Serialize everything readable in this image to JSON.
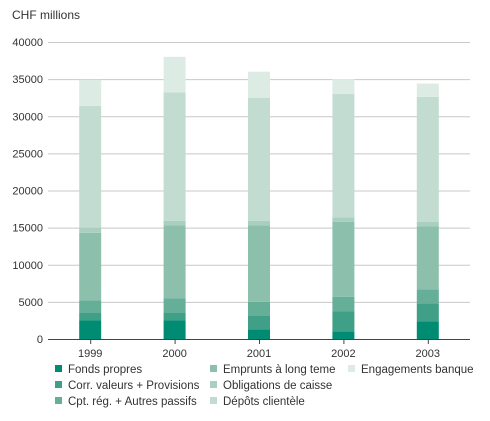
{
  "chart_data": {
    "type": "bar",
    "stacked": true,
    "ylabel": "CHF millions",
    "ylim": [
      0,
      40000
    ],
    "yticks": [
      "0",
      "5000",
      "10000",
      "15000",
      "20000",
      "25000",
      "30000",
      "35000",
      "40000"
    ],
    "grid": true,
    "categories": [
      "1999",
      "2000",
      "2001",
      "2002",
      "2003"
    ],
    "series": [
      {
        "name": "Fonds propres",
        "color": "#008c72",
        "values": [
          2500,
          2500,
          1300,
          1000,
          2400
        ]
      },
      {
        "name": "Corr. valeurs + Provisions",
        "color": "#3fa087",
        "values": [
          1000,
          1000,
          1800,
          2700,
          2400
        ]
      },
      {
        "name": "Cpt. rég. + Autres passifs",
        "color": "#65ae97",
        "values": [
          1700,
          2000,
          1900,
          2000,
          1900
        ]
      },
      {
        "name": "Emprunts à long teme",
        "color": "#8cc0ac",
        "values": [
          9100,
          9800,
          10300,
          10100,
          8500
        ]
      },
      {
        "name": "Obligations de caisse",
        "color": "#a9cfbf",
        "values": [
          700,
          600,
          600,
          600,
          600
        ]
      },
      {
        "name": "Dépôts clientèle",
        "color": "#c2dcd1",
        "values": [
          16400,
          17300,
          16600,
          16600,
          16800
        ]
      },
      {
        "name": "Engagements banque",
        "color": "#dcece5",
        "values": [
          3500,
          4800,
          3500,
          2000,
          1800
        ]
      }
    ],
    "legend": "bottom"
  }
}
